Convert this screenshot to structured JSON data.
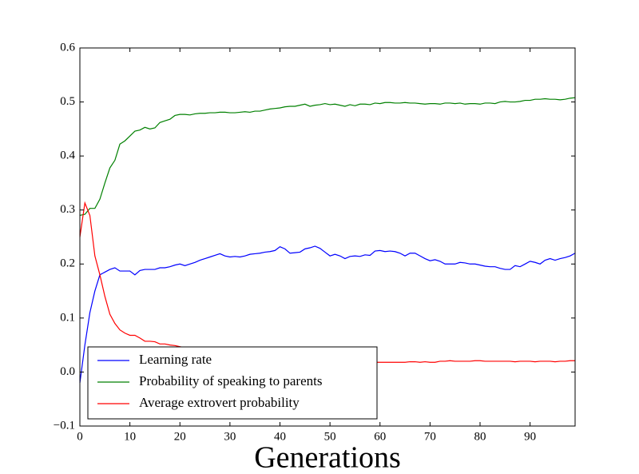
{
  "chart_data": {
    "type": "line",
    "x_label": "Generations",
    "x": [
      0,
      1,
      2,
      3,
      4,
      5,
      6,
      7,
      8,
      9,
      10,
      11,
      12,
      13,
      14,
      15,
      16,
      17,
      18,
      19,
      20,
      21,
      22,
      23,
      24,
      25,
      26,
      27,
      28,
      29,
      30,
      31,
      32,
      33,
      34,
      35,
      36,
      37,
      38,
      39,
      40,
      41,
      42,
      43,
      44,
      45,
      46,
      47,
      48,
      49,
      50,
      51,
      52,
      53,
      54,
      55,
      56,
      57,
      58,
      59,
      60,
      61,
      62,
      63,
      64,
      65,
      66,
      67,
      68,
      69,
      70,
      71,
      72,
      73,
      74,
      75,
      76,
      77,
      78,
      79,
      80,
      81,
      82,
      83,
      84,
      85,
      86,
      87,
      88,
      89,
      90,
      91,
      92,
      93,
      94,
      95,
      96,
      97,
      98,
      99
    ],
    "series": [
      {
        "name": "Learning rate",
        "color": "#0000ff",
        "values": [
          -0.02,
          0.05,
          0.11,
          0.15,
          0.18,
          0.185,
          0.19,
          0.193,
          0.187,
          0.187,
          0.187,
          0.18,
          0.188,
          0.19,
          0.19,
          0.19,
          0.193,
          0.193,
          0.195,
          0.198,
          0.2,
          0.197,
          0.2,
          0.203,
          0.207,
          0.21,
          0.213,
          0.216,
          0.219,
          0.215,
          0.213,
          0.214,
          0.213,
          0.215,
          0.218,
          0.219,
          0.22,
          0.222,
          0.223,
          0.225,
          0.232,
          0.228,
          0.22,
          0.221,
          0.222,
          0.228,
          0.23,
          0.233,
          0.229,
          0.222,
          0.215,
          0.218,
          0.215,
          0.21,
          0.214,
          0.215,
          0.214,
          0.217,
          0.216,
          0.224,
          0.225,
          0.223,
          0.224,
          0.223,
          0.22,
          0.215,
          0.22,
          0.22,
          0.215,
          0.21,
          0.206,
          0.208,
          0.205,
          0.2,
          0.2,
          0.2,
          0.203,
          0.202,
          0.2,
          0.2,
          0.198,
          0.196,
          0.195,
          0.195,
          0.192,
          0.19,
          0.19,
          0.197,
          0.195,
          0.2,
          0.205,
          0.203,
          0.2,
          0.207,
          0.21,
          0.207,
          0.21,
          0.212,
          0.215,
          0.22
        ]
      },
      {
        "name": "Probability of speaking to parents",
        "color": "#008000",
        "values": [
          0.29,
          0.292,
          0.303,
          0.303,
          0.32,
          0.35,
          0.378,
          0.392,
          0.422,
          0.428,
          0.437,
          0.446,
          0.448,
          0.453,
          0.45,
          0.452,
          0.462,
          0.465,
          0.468,
          0.475,
          0.477,
          0.477,
          0.476,
          0.478,
          0.479,
          0.479,
          0.48,
          0.48,
          0.481,
          0.481,
          0.48,
          0.48,
          0.481,
          0.482,
          0.481,
          0.483,
          0.483,
          0.485,
          0.487,
          0.488,
          0.489,
          0.491,
          0.492,
          0.492,
          0.494,
          0.496,
          0.492,
          0.494,
          0.495,
          0.497,
          0.495,
          0.496,
          0.494,
          0.492,
          0.495,
          0.493,
          0.496,
          0.496,
          0.495,
          0.498,
          0.497,
          0.499,
          0.499,
          0.498,
          0.498,
          0.499,
          0.498,
          0.498,
          0.497,
          0.496,
          0.497,
          0.497,
          0.496,
          0.498,
          0.498,
          0.497,
          0.498,
          0.496,
          0.497,
          0.497,
          0.496,
          0.498,
          0.498,
          0.497,
          0.5,
          0.501,
          0.5,
          0.5,
          0.501,
          0.503,
          0.503,
          0.505,
          0.505,
          0.506,
          0.505,
          0.505,
          0.504,
          0.505,
          0.507,
          0.508
        ]
      },
      {
        "name": "Average extrovert probability",
        "color": "#ff0000",
        "values": [
          0.25,
          0.313,
          0.29,
          0.215,
          0.18,
          0.14,
          0.107,
          0.09,
          0.078,
          0.072,
          0.068,
          0.068,
          0.063,
          0.057,
          0.057,
          0.056,
          0.052,
          0.052,
          0.05,
          0.049,
          0.047,
          0.045,
          0.043,
          0.041,
          0.04,
          0.039,
          0.037,
          0.036,
          0.035,
          0.034,
          0.033,
          0.032,
          0.031,
          0.03,
          0.029,
          0.028,
          0.027,
          0.027,
          0.026,
          0.025,
          0.025,
          0.024,
          0.023,
          0.023,
          0.022,
          0.022,
          0.021,
          0.021,
          0.02,
          0.02,
          0.02,
          0.02,
          0.019,
          0.019,
          0.019,
          0.018,
          0.018,
          0.018,
          0.018,
          0.018,
          0.018,
          0.018,
          0.018,
          0.018,
          0.018,
          0.018,
          0.019,
          0.019,
          0.018,
          0.019,
          0.018,
          0.018,
          0.02,
          0.02,
          0.021,
          0.02,
          0.02,
          0.02,
          0.02,
          0.021,
          0.021,
          0.02,
          0.02,
          0.02,
          0.02,
          0.02,
          0.02,
          0.019,
          0.02,
          0.02,
          0.02,
          0.019,
          0.02,
          0.02,
          0.02,
          0.019,
          0.02,
          0.02,
          0.021,
          0.021
        ]
      }
    ],
    "xlim": [
      0,
      99
    ],
    "xticks": [
      0,
      10,
      20,
      30,
      40,
      50,
      60,
      70,
      80,
      90
    ],
    "ylim": [
      -0.1,
      0.6
    ],
    "yticks": [
      {
        "value": -0.1,
        "label": "−0.1"
      },
      {
        "value": 0,
        "label": "0.0"
      },
      0.1,
      0.2,
      0.3,
      0.4,
      0.5,
      0.6
    ],
    "legend": "lower left",
    "grid": false
  }
}
